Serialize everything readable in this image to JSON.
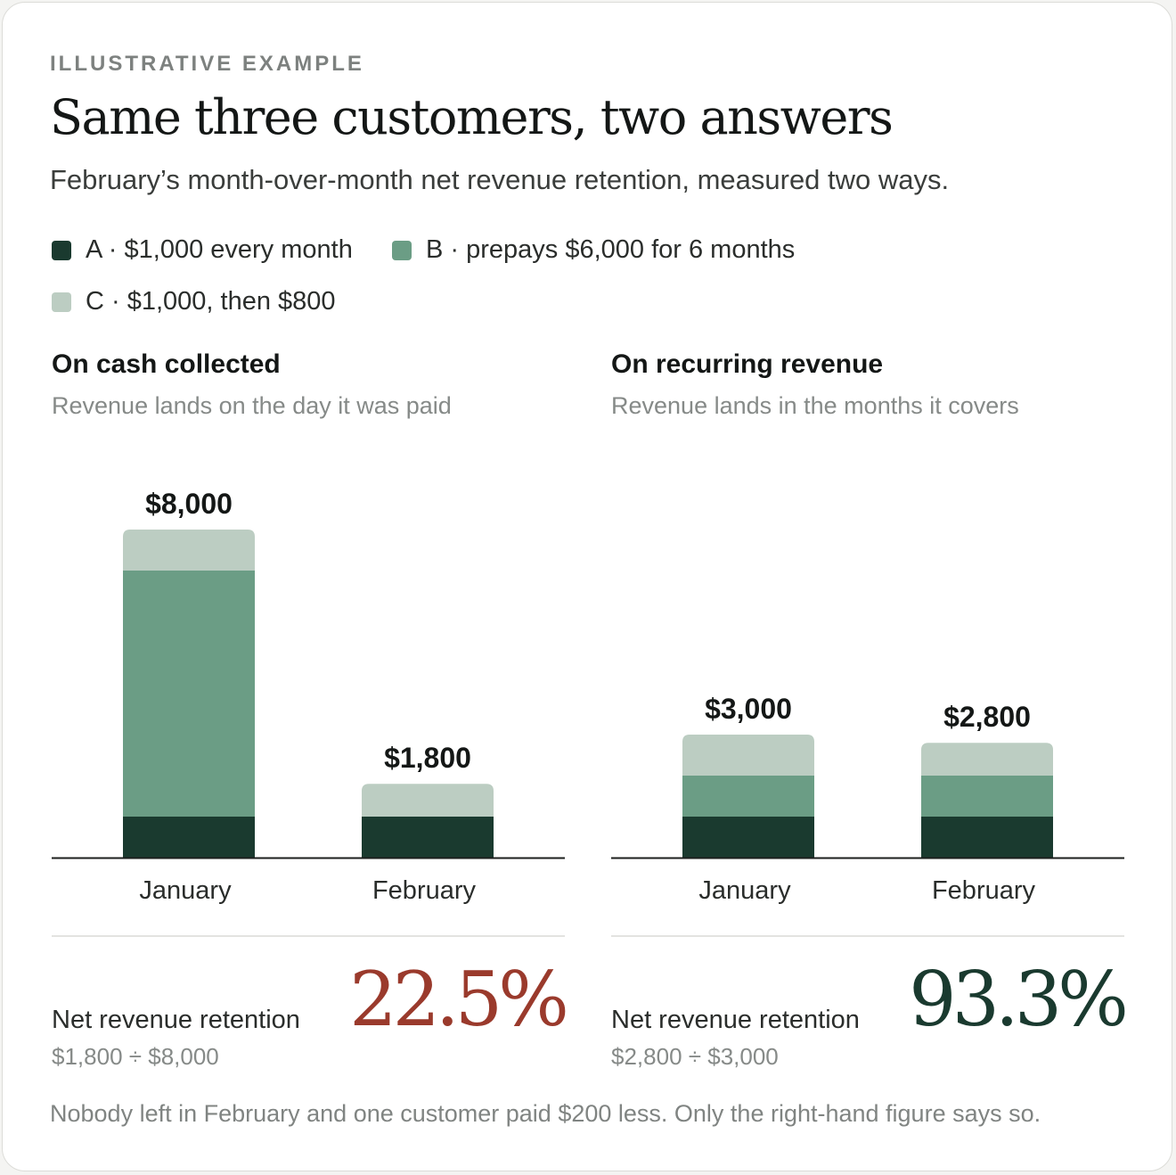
{
  "eyebrow": "ILLUSTRATIVE EXAMPLE",
  "title": "Same three customers, two answers",
  "subtitle": "February’s month-over-month net revenue retention, measured two ways.",
  "legend": [
    {
      "label": "A · $1,000 every month",
      "color": "#1a3a2f"
    },
    {
      "label": "B · prepays $6,000 for 6 months",
      "color": "#6b9d85"
    },
    {
      "label": "C · $1,000, then $800",
      "color": "#bccdc2"
    }
  ],
  "chart_data": [
    {
      "type": "bar",
      "stacked": true,
      "title": "On cash collected",
      "subtitle": "Revenue lands on the day it was paid",
      "categories": [
        "January",
        "February"
      ],
      "series": [
        {
          "name": "A · $1,000 every month",
          "values": [
            1000,
            1000
          ],
          "color": "#1a3a2f"
        },
        {
          "name": "B · prepays $6,000 for 6 months",
          "values": [
            6000,
            0
          ],
          "color": "#6b9d85"
        },
        {
          "name": "C · $1,000, then $800",
          "values": [
            1000,
            800
          ],
          "color": "#bccdc2"
        }
      ],
      "totals": [
        "$8,000",
        "$1,800"
      ],
      "ylim": [
        0,
        8000
      ]
    },
    {
      "type": "bar",
      "stacked": true,
      "title": "On recurring revenue",
      "subtitle": "Revenue lands in the months it covers",
      "categories": [
        "January",
        "February"
      ],
      "series": [
        {
          "name": "A · $1,000 every month",
          "values": [
            1000,
            1000
          ],
          "color": "#1a3a2f"
        },
        {
          "name": "B · prepays $6,000 for 6 months",
          "values": [
            1000,
            1000
          ],
          "color": "#6b9d85"
        },
        {
          "name": "C · $1,000, then $800",
          "values": [
            1000,
            800
          ],
          "color": "#bccdc2"
        }
      ],
      "totals": [
        "$3,000",
        "$2,800"
      ],
      "ylim": [
        0,
        8000
      ]
    }
  ],
  "results": [
    {
      "label": "Net revenue retention",
      "formula": "$1,800 ÷ $8,000",
      "value": "22.5%",
      "color": "#9a3a2c"
    },
    {
      "label": "Net revenue retention",
      "formula": "$2,800 ÷ $3,000",
      "value": "93.3%",
      "color": "#1a3a2f"
    }
  ],
  "footnote": "Nobody left in February and one customer paid $200 less. Only the right-hand figure says so."
}
